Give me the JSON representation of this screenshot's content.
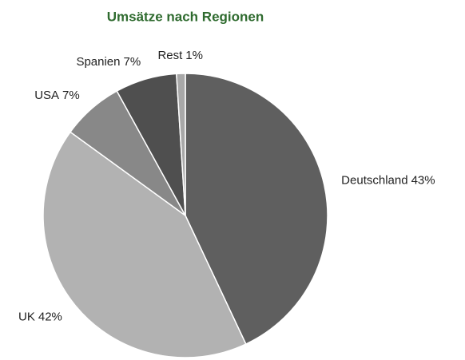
{
  "chart_data": {
    "type": "pie",
    "title": "Umsätze nach Regionen",
    "categories": [
      "Deutschland",
      "UK",
      "USA",
      "Spanien",
      "Rest"
    ],
    "values": [
      43,
      42,
      7,
      7,
      1
    ],
    "value_labels": [
      "43%",
      "42%",
      "7%",
      "7%",
      "1%"
    ],
    "colors": [
      "#5f5f5f",
      "#b2b2b2",
      "#888888",
      "#4f4f4f",
      "#a8a8a8"
    ]
  }
}
